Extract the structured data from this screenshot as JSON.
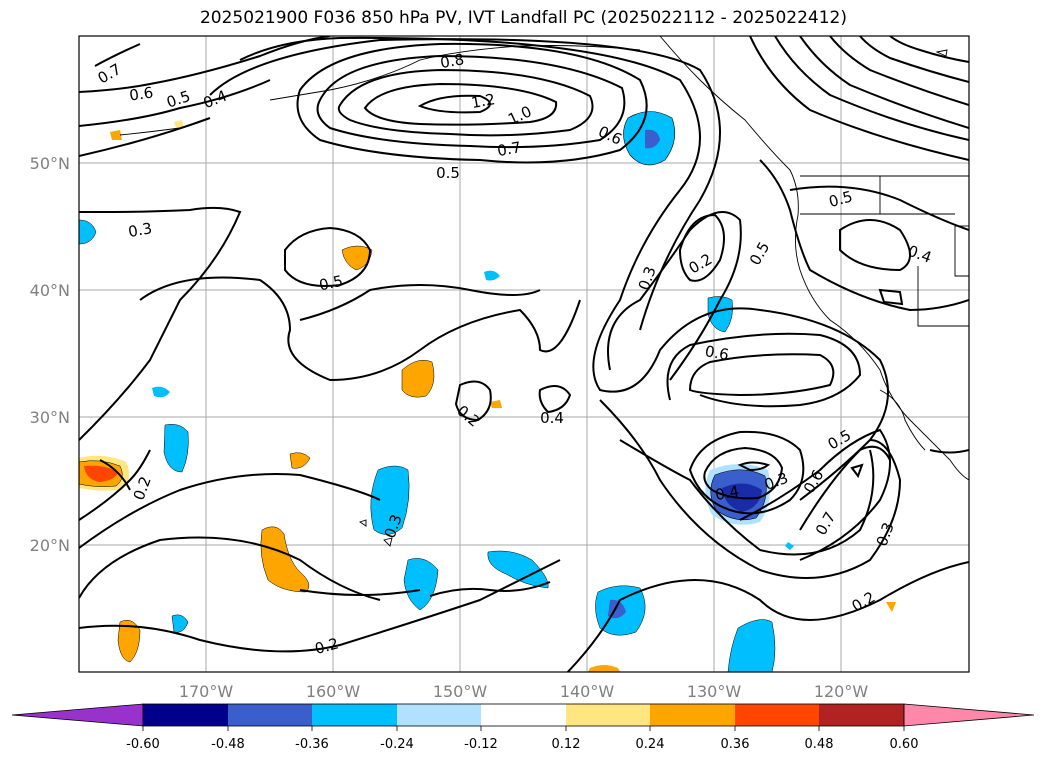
{
  "title": "2025021900 F036 850 hPa PV, IVT Landfall PC (2025022112 - 2025022412)",
  "map": {
    "lon_range": [
      -180,
      -110
    ],
    "lat_range": [
      10,
      60
    ],
    "x_ticks": [
      "170°W",
      "160°W",
      "150°W",
      "140°W",
      "130°W",
      "120°W"
    ],
    "y_ticks": [
      "50°N",
      "40°N",
      "30°N",
      "20°N"
    ],
    "contour_labels": [
      "0.7",
      "0.6",
      "0.5",
      "0.4",
      "0.8",
      "1.2",
      "1.0",
      "0.7",
      "0.6",
      "0.5",
      "0.3",
      "0.5",
      "0.3",
      "0.2",
      "0.5",
      "0.5",
      "0.4",
      "0.6",
      "0.2",
      "0.4",
      "0.3",
      "0.4",
      "0.5",
      "0.6",
      "0.7",
      "0.3",
      "0.2",
      "0.2",
      "0.2",
      "0.3"
    ]
  },
  "colorbar": {
    "levels": [
      "-0.60",
      "-0.48",
      "-0.36",
      "-0.24",
      "-0.12",
      "0.12",
      "0.24",
      "0.36",
      "0.48",
      "0.60"
    ],
    "colors": [
      "#9932cc",
      "#00008b",
      "#3a5fcd",
      "#00bfff",
      "#b0e2ff",
      "#ffffff",
      "#ffe680",
      "#ffa500",
      "#ff4500",
      "#b22222",
      "#ff88aa"
    ]
  }
}
